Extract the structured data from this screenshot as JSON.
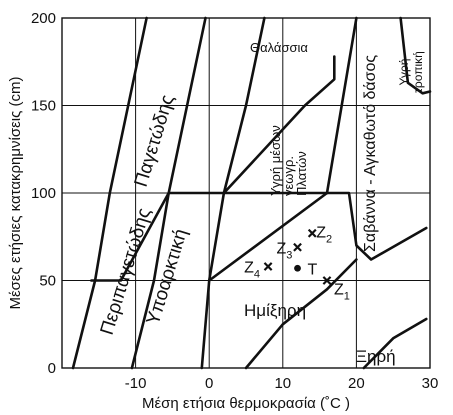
{
  "chart_data": {
    "type": "scatter",
    "title": "",
    "xlabel": "Μέση ετήσια θερμοκρασία  (˚C )",
    "ylabel": "Μέσες ετήσιες κατακρημνίσεις (cm)",
    "xlim": [
      -20,
      30
    ],
    "ylim": [
      0,
      200
    ],
    "x_ticks": [
      "-10",
      "0",
      "10",
      "20",
      "30"
    ],
    "y_ticks": [
      "0",
      "50",
      "100",
      "150",
      "200"
    ],
    "grid": true,
    "zones": [
      {
        "label": "Θαλάσσια"
      },
      {
        "label": "Υγρή τροπική"
      },
      {
        "label": "Παγετώδης"
      },
      {
        "label": "Περιπαγετώδης"
      },
      {
        "label": "Υποαρκτική"
      },
      {
        "label": "Υγρή μέσων γεωγρ. Πλατών"
      },
      {
        "label": "Σαβάννα - Αγκαθωτό δάσος"
      },
      {
        "label": "Ημίξηρη"
      },
      {
        "label": "Ξηρή"
      }
    ],
    "points": [
      {
        "name": "Z",
        "sub": "1",
        "x": 16,
        "y": 50,
        "marker": "x"
      },
      {
        "name": "Z",
        "sub": "2",
        "x": 14,
        "y": 77,
        "marker": "x"
      },
      {
        "name": "Z",
        "sub": "3",
        "x": 12,
        "y": 69,
        "marker": "x"
      },
      {
        "name": "Z",
        "sub": "4",
        "x": 8,
        "y": 58,
        "marker": "x"
      },
      {
        "name": "T",
        "sub": "",
        "x": 12,
        "y": 57,
        "marker": "dot"
      }
    ],
    "boundaries": [
      [
        [
          -18.5,
          0
        ],
        [
          -15.5,
          50
        ],
        [
          -13.5,
          100
        ],
        [
          -11,
          150
        ],
        [
          -8.5,
          200
        ]
      ],
      [
        [
          -10.5,
          0
        ],
        [
          -7.5,
          50
        ],
        [
          -5.5,
          100
        ],
        [
          -3,
          150
        ],
        [
          -0.5,
          200
        ]
      ],
      [
        [
          -1,
          0
        ],
        [
          0,
          50
        ],
        [
          2,
          100
        ],
        [
          5,
          150
        ],
        [
          7.5,
          200
        ]
      ],
      [
        [
          -16,
          50
        ],
        [
          -12,
          50
        ],
        [
          -5.5,
          100
        ]
      ],
      [
        [
          -5.5,
          100
        ],
        [
          0,
          100
        ],
        [
          16,
          100
        ]
      ],
      [
        [
          5,
          0
        ],
        [
          10,
          25
        ],
        [
          16,
          45
        ],
        [
          20,
          62
        ]
      ],
      [
        [
          0,
          50
        ],
        [
          16,
          100
        ],
        [
          19,
          100
        ],
        [
          20,
          70
        ],
        [
          22,
          62
        ],
        [
          29.5,
          80
        ]
      ],
      [
        [
          16,
          100
        ],
        [
          20,
          200
        ]
      ],
      [
        [
          2,
          100
        ],
        [
          13,
          150
        ],
        [
          17,
          165
        ],
        [
          17,
          178
        ]
      ],
      [
        [
          21,
          0
        ],
        [
          25,
          17
        ],
        [
          29.5,
          28
        ]
      ],
      [
        [
          26,
          200
        ],
        [
          27,
          163
        ],
        [
          29,
          157
        ],
        [
          30,
          158
        ]
      ]
    ]
  }
}
